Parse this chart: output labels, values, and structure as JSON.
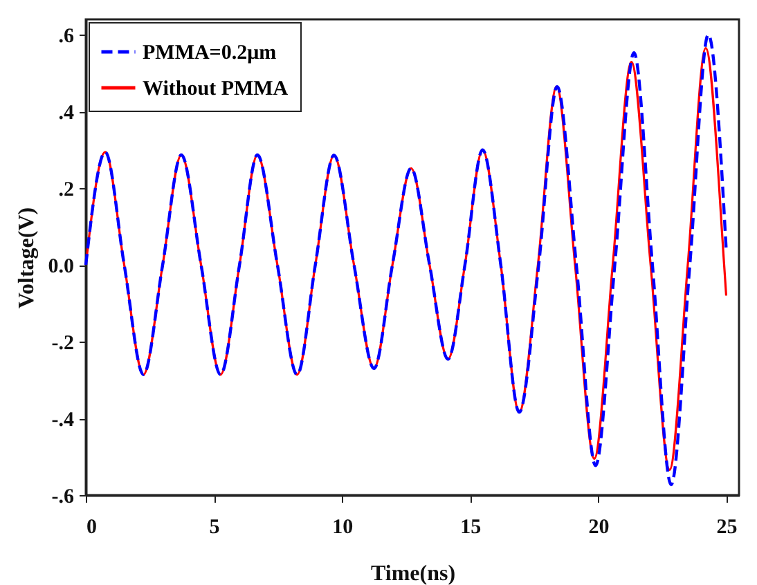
{
  "chart_data": {
    "type": "line",
    "xlabel": "Time(ns)",
    "ylabel": "Voltage(V)",
    "xlim": [
      0,
      25.5
    ],
    "ylim": [
      -0.6,
      0.64
    ],
    "xticks": [
      0,
      5,
      10,
      15,
      20,
      25
    ],
    "yticks": [
      {
        "value": -0.6,
        "label": "-.6"
      },
      {
        "value": -0.4,
        "label": "-.4"
      },
      {
        "value": -0.2,
        "label": "-.2"
      },
      {
        "value": 0,
        "label": "0.0"
      },
      {
        "value": 0.2,
        "label": ".2"
      },
      {
        "value": 0.4,
        "label": ".4"
      },
      {
        "value": 0.6,
        "label": ".6"
      }
    ],
    "grid": false,
    "legend": "top left",
    "series": [
      {
        "name": "PMMA=0.2μm",
        "color": "#0000ff",
        "line_style": "dashed",
        "x": [
          0,
          0.76,
          1.5,
          2.25,
          3.0,
          3.73,
          4.5,
          5.26,
          6.0,
          6.7,
          7.48,
          8.25,
          8.96,
          9.69,
          10.47,
          11.25,
          11.97,
          12.7,
          13.42,
          14.14,
          14.8,
          15.49,
          16.2,
          16.92,
          17.68,
          18.4,
          19.15,
          19.9,
          20.65,
          21.4,
          22.12,
          22.85,
          23.58,
          24.3,
          25
        ],
        "values": [
          0,
          0.294,
          0,
          -0.286,
          0,
          0.287,
          0,
          -0.286,
          0,
          0.287,
          0,
          -0.286,
          0,
          0.286,
          0,
          -0.27,
          0,
          0.252,
          0,
          -0.246,
          0,
          0.3,
          0,
          -0.384,
          0,
          0.465,
          0,
          -0.523,
          0,
          0.553,
          0,
          -0.573,
          0,
          0.6,
          0.04
        ]
      },
      {
        "name": "Without PMMA",
        "color": "#ff0000",
        "line_style": "solid",
        "x": [
          0,
          0.76,
          1.5,
          2.25,
          3.0,
          3.73,
          4.5,
          5.26,
          6.0,
          6.7,
          7.48,
          8.25,
          8.96,
          9.69,
          10.47,
          11.25,
          11.97,
          12.7,
          13.42,
          14.14,
          14.8,
          15.49,
          16.2,
          16.92,
          17.65,
          18.38,
          19.1,
          19.85,
          20.57,
          21.3,
          22.05,
          22.79,
          23.5,
          24.2,
          24.92,
          25
        ],
        "values": [
          0,
          0.294,
          0,
          -0.286,
          0,
          0.287,
          0,
          -0.286,
          0,
          0.287,
          0,
          -0.286,
          0,
          0.286,
          0,
          -0.27,
          0,
          0.252,
          0,
          -0.246,
          0,
          0.3,
          0,
          -0.384,
          0,
          0.465,
          0,
          -0.505,
          0,
          0.529,
          0,
          -0.534,
          0,
          0.565,
          0,
          -0.08
        ]
      }
    ]
  }
}
